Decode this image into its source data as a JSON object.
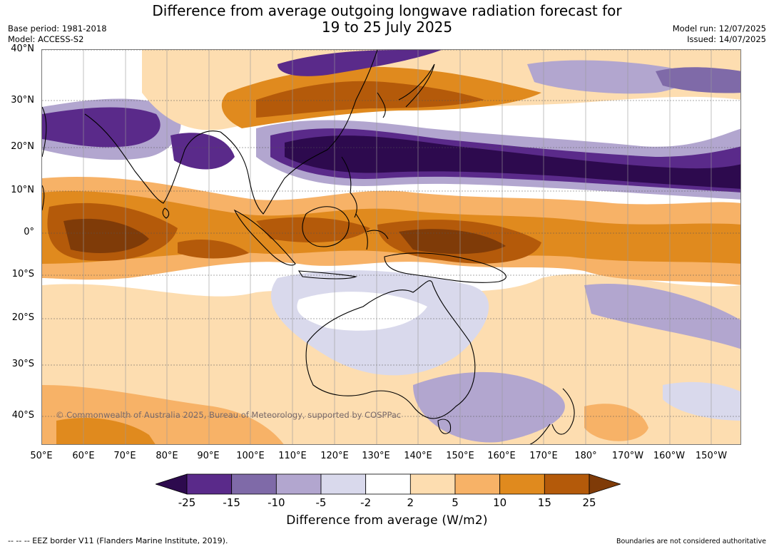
{
  "title_line1": "Difference from average outgoing longwave radiation forecast for",
  "title_line2": "19 to 25 July 2025",
  "meta_left": {
    "base_period": "Base period: 1981-2018",
    "model": "Model: ACCESS-S2"
  },
  "meta_right": {
    "model_run": "Model run: 12/07/2025",
    "issued": "Issued: 14/07/2025"
  },
  "lat_labels": [
    "40°N",
    "30°N",
    "20°N",
    "10°N",
    "0°",
    "10°S",
    "20°S",
    "30°S",
    "40°S"
  ],
  "lon_labels": [
    "50°E",
    "60°E",
    "70°E",
    "80°E",
    "90°E",
    "100°E",
    "110°E",
    "120°E",
    "130°E",
    "140°E",
    "150°E",
    "160°E",
    "170°E",
    "180°",
    "170°W",
    "160°W",
    "150°W"
  ],
  "copyright": "© Commonwealth of Australia 2025, Bureau of Meteorology, supported by COSPPac",
  "colorbar": {
    "ticks": [
      "-25",
      "-15",
      "-10",
      "-5",
      "-2",
      "2",
      "5",
      "10",
      "15",
      "25"
    ],
    "colors": [
      "#2d0a4e",
      "#5a2a8a",
      "#7f6aa8",
      "#b2a6cf",
      "#d9d9ec",
      "#ffffff",
      "#fdddb0",
      "#f7b267",
      "#e08a1e",
      "#b45a0a",
      "#7f3b08"
    ],
    "label": "Difference from average (W/m2)"
  },
  "footer_left": "--  --  -- EEZ border V11 (Flanders Marine Institute, 2019).",
  "footer_right": "Boundaries are not considered authoritative"
}
